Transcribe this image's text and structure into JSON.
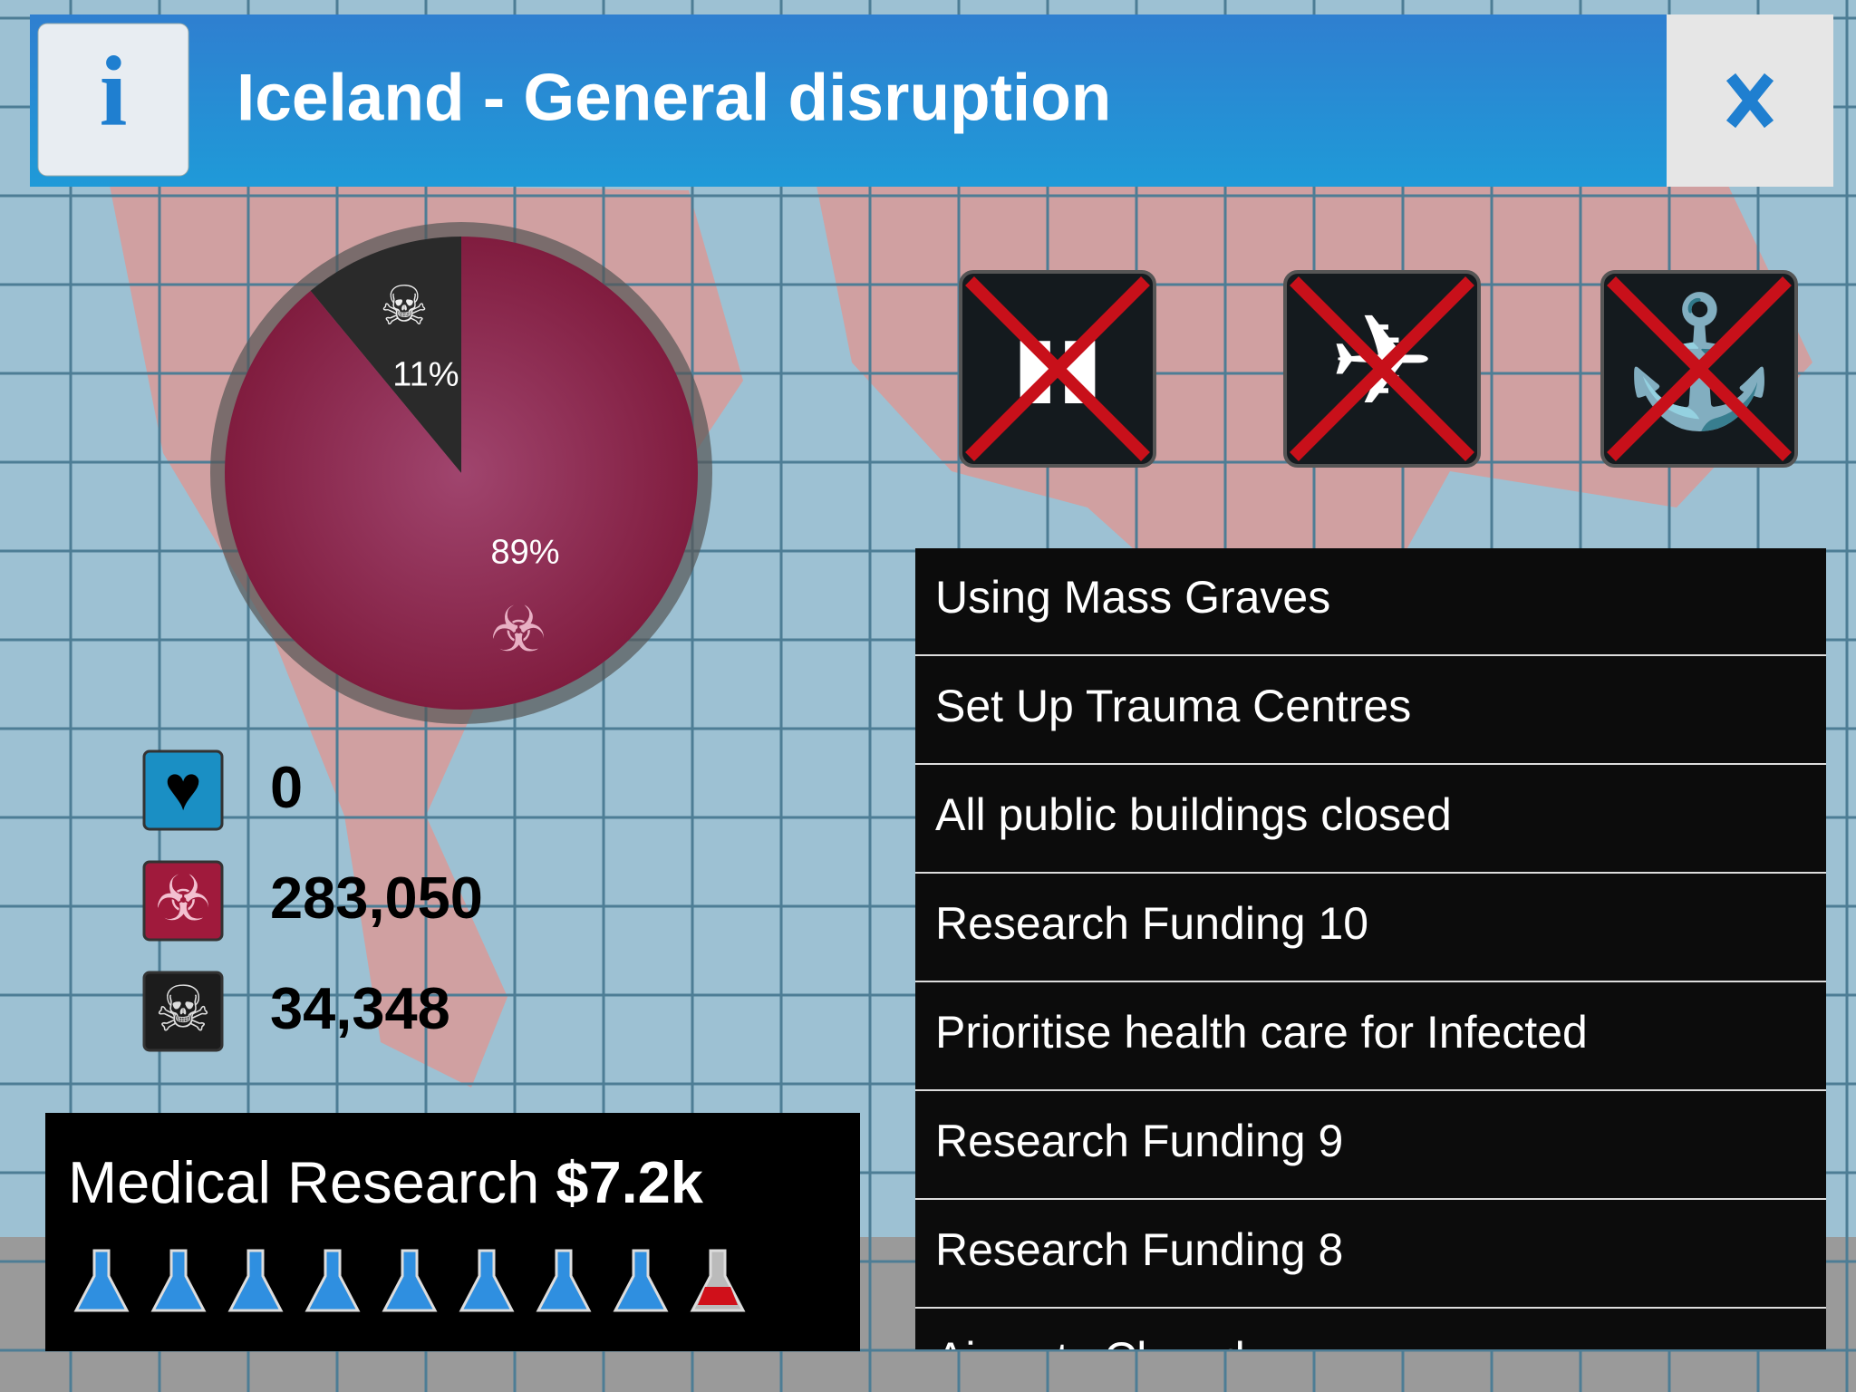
{
  "header": {
    "title": "Iceland - General disruption"
  },
  "chart_data": {
    "type": "pie",
    "categories": [
      null,
      null
    ],
    "values": [
      11,
      89
    ],
    "value_labels": [
      "11%",
      "89%"
    ],
    "colors": [
      "#2a2a2a",
      "#8a1d44"
    ]
  },
  "stats": {
    "healthy": "0",
    "infected": "283,050",
    "dead": "34,348"
  },
  "research": {
    "label": "Medical Research",
    "amount": "$7.2k"
  },
  "measures": [
    "Using Mass Graves",
    "Set Up Trauma Centres",
    "All public buildings closed",
    "Research Funding 10",
    "Prioritise health care for Infected",
    "Research Funding 9",
    "Research Funding 8",
    "Airports Closed"
  ]
}
